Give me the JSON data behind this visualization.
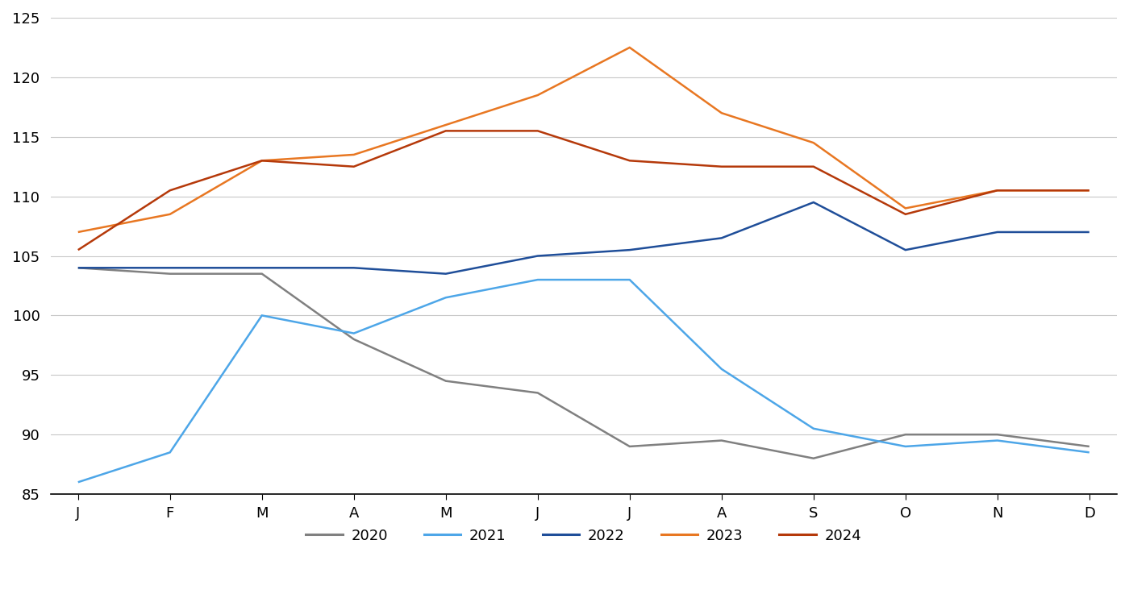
{
  "months": [
    "J",
    "F",
    "M",
    "A",
    "M",
    "J",
    "J",
    "A",
    "S",
    "O",
    "N",
    "D"
  ],
  "series": {
    "2020": [
      104.0,
      103.5,
      103.5,
      98.0,
      94.5,
      93.5,
      89.0,
      89.5,
      88.0,
      90.0,
      90.0,
      89.0
    ],
    "2021": [
      86.0,
      88.5,
      100.0,
      98.5,
      101.5,
      103.0,
      103.0,
      95.5,
      90.5,
      89.0,
      89.5,
      88.5
    ],
    "2022": [
      104.0,
      104.0,
      104.0,
      104.0,
      103.5,
      105.0,
      105.5,
      106.5,
      109.5,
      105.5,
      107.0,
      107.0
    ],
    "2023": [
      107.0,
      108.5,
      113.0,
      113.5,
      116.0,
      118.5,
      122.5,
      117.0,
      114.5,
      109.0,
      110.5,
      110.5
    ],
    "2024": [
      105.5,
      110.5,
      113.0,
      112.5,
      115.5,
      115.5,
      113.0,
      112.5,
      112.5,
      108.5,
      110.5,
      110.5
    ]
  },
  "colors": {
    "2020": "#808080",
    "2021": "#4da6e8",
    "2022": "#1f4e99",
    "2023": "#e87722",
    "2024": "#b5390a"
  },
  "ylim": [
    85,
    125
  ],
  "yticks": [
    85,
    90,
    95,
    100,
    105,
    110,
    115,
    120,
    125
  ],
  "background_color": "#ffffff",
  "grid_color": "#c8c8c8",
  "linewidth": 1.8,
  "legend_order": [
    "2020",
    "2021",
    "2022",
    "2023",
    "2024"
  ]
}
